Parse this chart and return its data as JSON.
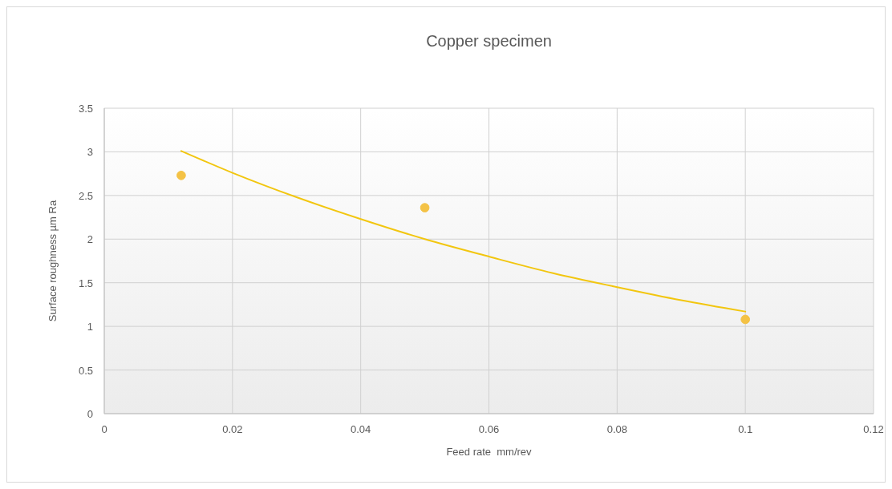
{
  "chart_data": {
    "type": "scatter",
    "title": "Copper  specimen",
    "xlabel": "Feed rate  mm/rev",
    "ylabel": "Surface roughness µm Ra",
    "xlim": [
      0,
      0.12
    ],
    "xticks": [
      0,
      0.02,
      0.04,
      0.06,
      0.08,
      0.1,
      0.12
    ],
    "ylim": [
      0,
      3.5
    ],
    "yticks": [
      0,
      0.5,
      1,
      1.5,
      2,
      2.5,
      3,
      3.5
    ],
    "grid": true,
    "series": [
      {
        "marker": "circle",
        "color": "#f4c245",
        "x": [
          0.012,
          0.05,
          0.1
        ],
        "values": [
          2.73,
          2.36,
          1.08
        ]
      },
      {
        "type": "line",
        "marker": "none",
        "color": "#f2c60f",
        "x": [
          0.012,
          0.02,
          0.03,
          0.04,
          0.05,
          0.06,
          0.07,
          0.08,
          0.09,
          0.1
        ],
        "values": [
          3.01,
          2.76,
          2.48,
          2.23,
          2.0,
          1.8,
          1.61,
          1.45,
          1.3,
          1.17
        ]
      }
    ]
  }
}
